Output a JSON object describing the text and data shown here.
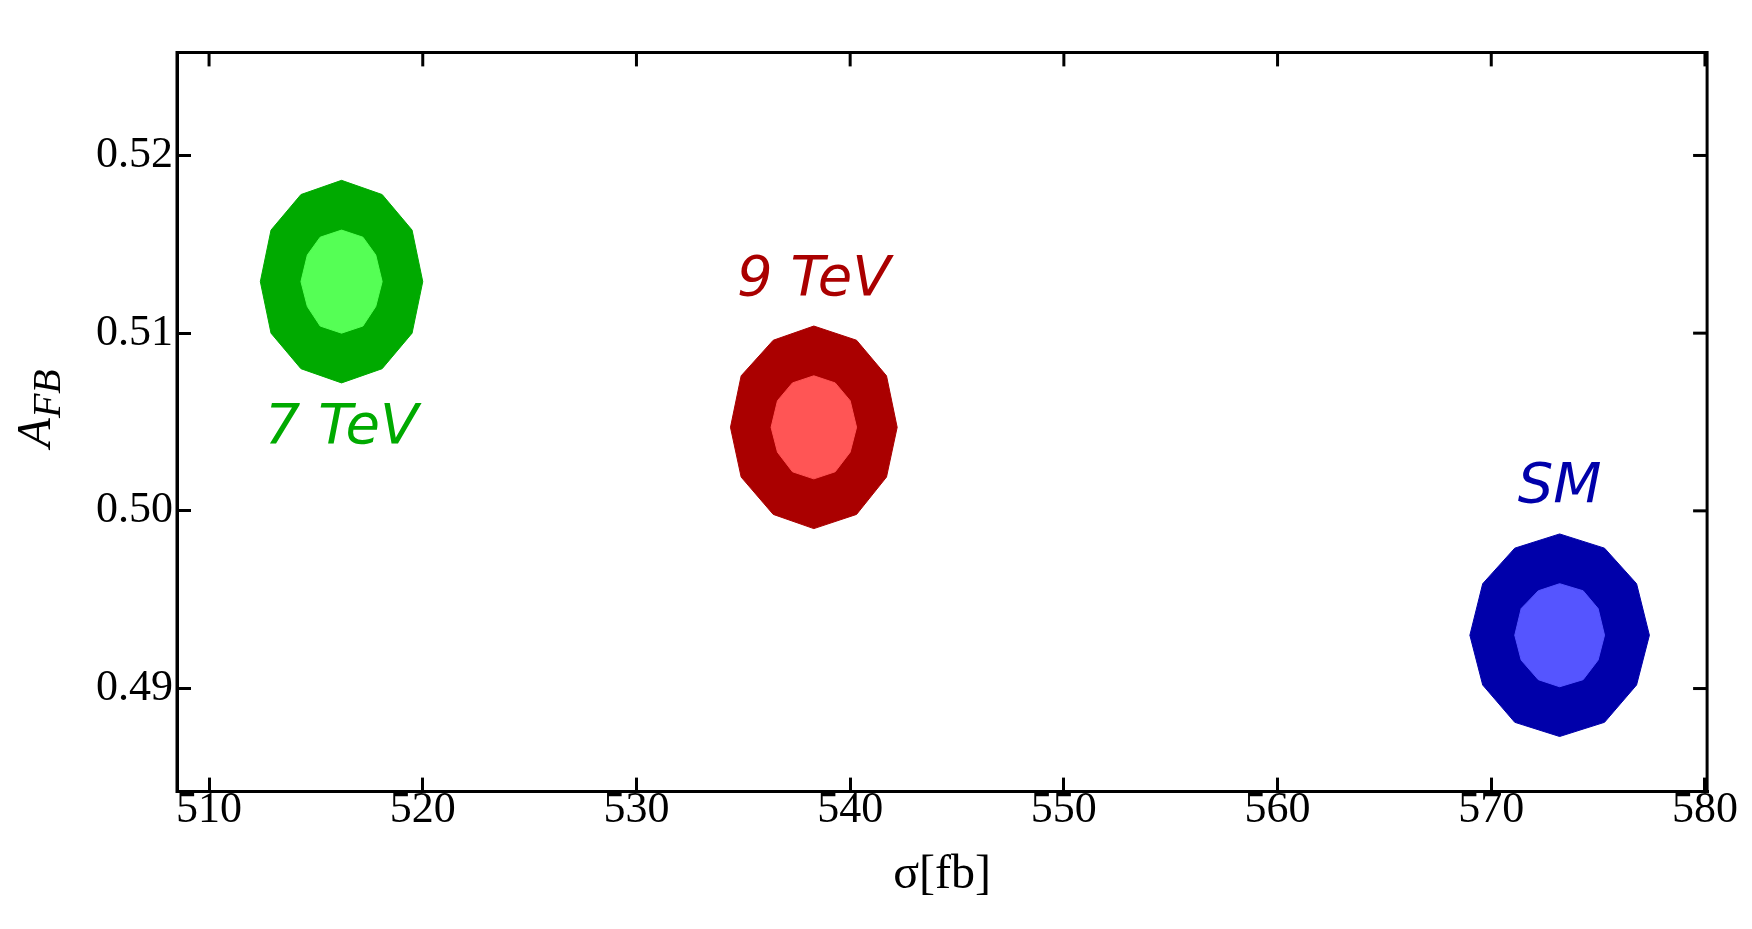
{
  "chart_data": {
    "type": "area",
    "xlabel": "σ[fb]",
    "ylabel": "A$_{FB}$",
    "xlim": [
      508.5,
      580.1
    ],
    "ylim": [
      0.4842,
      0.5258
    ],
    "xticks": [
      510,
      520,
      530,
      540,
      550,
      560,
      570,
      580
    ],
    "yticks": [
      {
        "value": 0.49,
        "label": "0.49"
      },
      {
        "value": 0.5,
        "label": "0.50"
      },
      {
        "value": 0.51,
        "label": "0.51"
      },
      {
        "value": 0.52,
        "label": "0.52"
      }
    ],
    "grid": false,
    "legend": false,
    "series": [
      {
        "name": "7 TeV",
        "color": "#00aa00",
        "x": [
          520.0,
          519.5,
          518.1,
          516.2,
          514.3,
          512.9,
          512.4,
          512.9,
          514.3,
          516.2,
          518.1,
          519.5,
          520.0
        ],
        "values": [
          0.5129,
          0.5158,
          0.5178,
          0.5186,
          0.5178,
          0.5158,
          0.5129,
          0.51,
          0.508,
          0.5072,
          0.508,
          0.51,
          0.5129
        ]
      },
      {
        "color": "#55ff55",
        "x": [
          518.1,
          517.8,
          517.2,
          516.2,
          515.2,
          514.6,
          514.3,
          514.6,
          515.2,
          516.2,
          517.2,
          517.8,
          518.1
        ],
        "values": [
          0.5129,
          0.5144,
          0.5154,
          0.5158,
          0.5154,
          0.5144,
          0.5129,
          0.5115,
          0.5104,
          0.51,
          0.5104,
          0.5115,
          0.5129
        ]
      },
      {
        "name": "9 TeV",
        "color": "#aa0000",
        "x": [
          542.2,
          541.7,
          540.3,
          538.3,
          536.4,
          534.9,
          534.4,
          534.9,
          536.4,
          538.3,
          540.3,
          541.7,
          542.2
        ],
        "values": [
          0.5047,
          0.5076,
          0.5096,
          0.5104,
          0.5096,
          0.5076,
          0.5047,
          0.5019,
          0.4998,
          0.499,
          0.4998,
          0.5019,
          0.5047
        ]
      },
      {
        "color": "#ff5555",
        "x": [
          540.3,
          540.0,
          539.3,
          538.3,
          537.3,
          536.6,
          536.3,
          536.6,
          537.3,
          538.3,
          539.3,
          540.0,
          540.3
        ],
        "values": [
          0.5047,
          0.5062,
          0.5072,
          0.5076,
          0.5072,
          0.5062,
          0.5047,
          0.5033,
          0.5022,
          0.5018,
          0.5022,
          0.5033,
          0.5047
        ]
      },
      {
        "name": "SM",
        "color": "#0000aa",
        "x": [
          577.4,
          576.8,
          575.3,
          573.2,
          571.1,
          569.6,
          569.0,
          569.6,
          571.1,
          573.2,
          575.3,
          576.8,
          577.4
        ],
        "values": [
          0.493,
          0.4959,
          0.4979,
          0.4987,
          0.4979,
          0.4959,
          0.493,
          0.4902,
          0.4881,
          0.4873,
          0.4881,
          0.4902,
          0.493
        ]
      },
      {
        "color": "#5555ff",
        "x": [
          575.3,
          575.0,
          574.3,
          573.2,
          572.2,
          571.4,
          571.1,
          571.4,
          572.2,
          573.2,
          574.3,
          575.0,
          575.3
        ],
        "values": [
          0.493,
          0.4945,
          0.4955,
          0.4959,
          0.4955,
          0.4945,
          0.493,
          0.4916,
          0.4905,
          0.4901,
          0.4905,
          0.4916,
          0.493
        ]
      }
    ]
  }
}
